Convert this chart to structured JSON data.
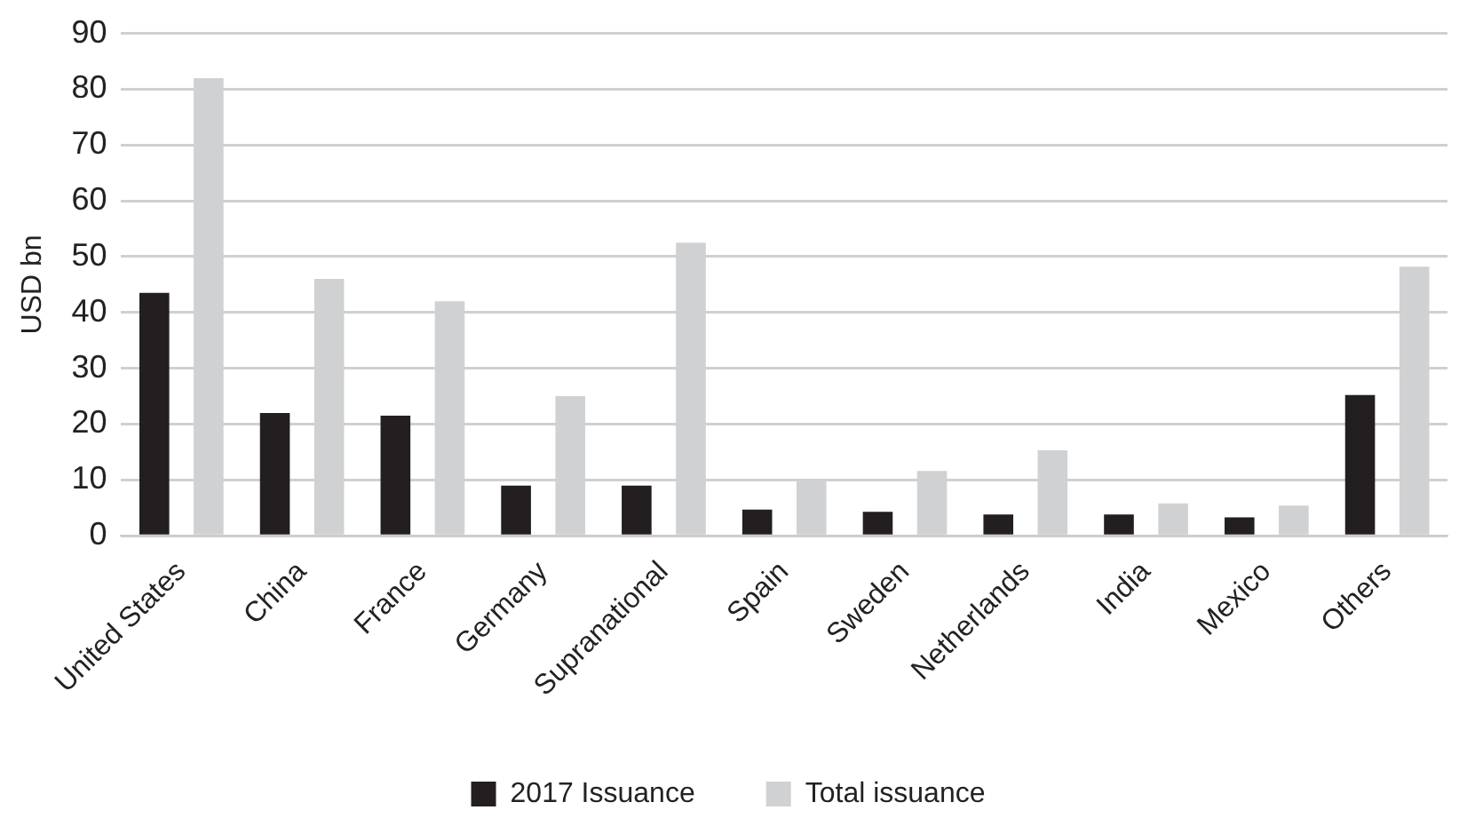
{
  "chart_data": {
    "type": "bar",
    "ylabel": "USD bn",
    "categories": [
      "United States",
      "China",
      "France",
      "Germany",
      "Supranational",
      "Spain",
      "Sweden",
      "Netherlands",
      "India",
      "Mexico",
      "Others"
    ],
    "series": [
      {
        "name": "2017 Issuance",
        "color": "#231f20",
        "values": [
          43.5,
          22,
          21.5,
          9,
          9,
          4.7,
          4.3,
          3.8,
          3.8,
          3.3,
          25.2
        ]
      },
      {
        "name": "Total issuance",
        "color": "#d0d1d3",
        "values": [
          82,
          46,
          42,
          25,
          52.5,
          10,
          11.6,
          15.3,
          5.8,
          5.4,
          48.2
        ]
      }
    ],
    "ylim": [
      0,
      90
    ],
    "yticks": [
      0,
      10,
      20,
      30,
      40,
      50,
      60,
      70,
      80,
      90
    ],
    "grid": "y",
    "legend": "bottom"
  }
}
